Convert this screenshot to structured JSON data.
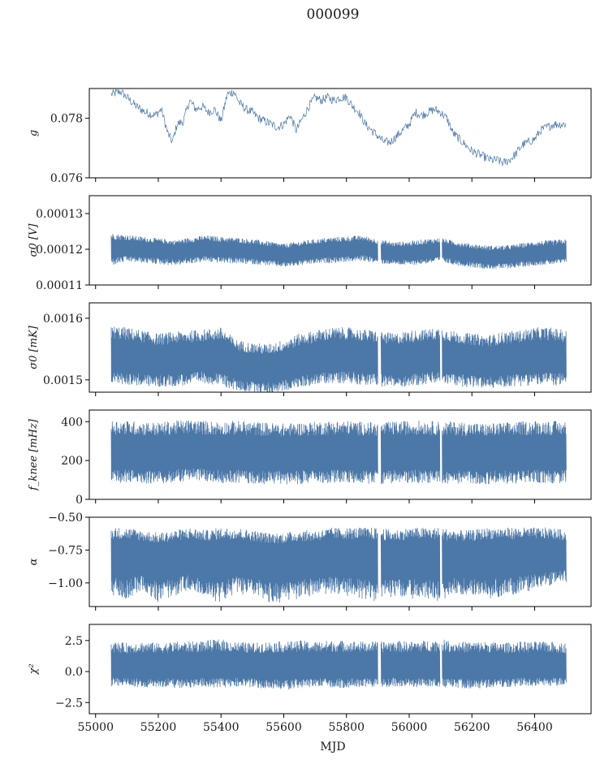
{
  "figure": {
    "title": "000099"
  },
  "chart_data": [
    {
      "type": "line",
      "ylabel": "g",
      "ylim": [
        0.076,
        0.079
      ],
      "yticks": [
        0.076,
        0.078
      ],
      "ytick_labels": [
        "0.076",
        "0.078"
      ],
      "color": "#4c78a8",
      "style": "thin",
      "series": [
        {
          "x": [
            55050,
            55080,
            55100,
            55130,
            55160,
            55190,
            55210,
            55230,
            55245,
            55260,
            55280,
            55300,
            55320,
            55340,
            55360,
            55380,
            55400,
            55420,
            55440,
            55460,
            55480,
            55500,
            55520,
            55540,
            55560,
            55580,
            55600,
            55620,
            55640,
            55660,
            55680,
            55700,
            55720,
            55740,
            55760,
            55780,
            55800,
            55820,
            55840,
            55860,
            55880,
            55900,
            55920,
            55940,
            55960,
            55980,
            56000,
            56020,
            56040,
            56060,
            56080,
            56100,
            56120,
            56140,
            56160,
            56180,
            56200,
            56220,
            56240,
            56260,
            56280,
            56300,
            56320,
            56340,
            56360,
            56380,
            56400,
            56420,
            56440,
            56460,
            56480,
            56500
          ],
          "y": [
            0.0788,
            0.0789,
            0.0787,
            0.0784,
            0.0782,
            0.0781,
            0.0783,
            0.0775,
            0.0772,
            0.0778,
            0.0779,
            0.0786,
            0.0783,
            0.0784,
            0.0782,
            0.0783,
            0.0779,
            0.0788,
            0.0789,
            0.0785,
            0.0783,
            0.0782,
            0.078,
            0.0779,
            0.0778,
            0.0777,
            0.0778,
            0.0781,
            0.0776,
            0.078,
            0.0784,
            0.0787,
            0.0786,
            0.0787,
            0.0786,
            0.0787,
            0.0787,
            0.0784,
            0.0782,
            0.0778,
            0.0776,
            0.0774,
            0.0772,
            0.0772,
            0.0774,
            0.0776,
            0.0778,
            0.0782,
            0.0781,
            0.0782,
            0.0783,
            0.0782,
            0.078,
            0.0775,
            0.0773,
            0.0771,
            0.0769,
            0.0768,
            0.0767,
            0.0766,
            0.0766,
            0.0765,
            0.0766,
            0.0768,
            0.0771,
            0.0772,
            0.0773,
            0.0776,
            0.0777,
            0.0778,
            0.0778,
            0.0778
          ]
        }
      ]
    },
    {
      "type": "line",
      "ylabel": "σ0 [V]",
      "ylim": [
        0.00011,
        0.000135
      ],
      "yticks": [
        0.00011,
        0.00012,
        0.00013
      ],
      "ytick_labels": [
        "0.00011",
        "0.00012",
        "0.00013"
      ],
      "color": "#4c78a8",
      "style": "dense",
      "series": [
        {
          "x": [
            55050,
            55100,
            55150,
            55200,
            55250,
            55300,
            55350,
            55400,
            55450,
            55500,
            55550,
            55600,
            55650,
            55700,
            55750,
            55800,
            55850,
            55900,
            55950,
            56000,
            56050,
            56100,
            56150,
            56200,
            56250,
            56300,
            56350,
            56400,
            56450,
            56500
          ],
          "mean": [
            0.0001205,
            0.0001205,
            0.00012,
            0.00012,
            0.0001195,
            0.00012,
            0.0001205,
            0.00012,
            0.00012,
            0.0001195,
            0.000119,
            0.0001185,
            0.000119,
            0.0001195,
            0.00012,
            0.00012,
            0.0001205,
            0.0001195,
            0.000119,
            0.000119,
            0.0001195,
            0.00012,
            0.000119,
            0.0001185,
            0.000118,
            0.000118,
            0.0001185,
            0.000119,
            0.000119,
            0.0001195
          ],
          "upper": [
            0.0001245,
            0.000124,
            0.0001235,
            0.000123,
            0.0001225,
            0.0001232,
            0.0001238,
            0.0001235,
            0.0001232,
            0.0001228,
            0.0001222,
            0.0001215,
            0.0001222,
            0.0001228,
            0.0001233,
            0.0001236,
            0.0001238,
            0.0001228,
            0.000122,
            0.0001222,
            0.0001228,
            0.0001232,
            0.0001222,
            0.0001215,
            0.000121,
            0.000121,
            0.0001215,
            0.0001222,
            0.0001225,
            0.0001228
          ],
          "lower": [
            0.0001155,
            0.0001165,
            0.0001162,
            0.0001158,
            0.0001155,
            0.000116,
            0.0001165,
            0.0001162,
            0.000116,
            0.0001158,
            0.0001155,
            0.000115,
            0.0001155,
            0.000116,
            0.0001162,
            0.0001165,
            0.0001168,
            0.000116,
            0.0001158,
            0.0001155,
            0.000116,
            0.0001165,
            0.0001155,
            0.000115,
            0.0001145,
            0.0001145,
            0.000115,
            0.0001155,
            0.0001158,
            0.000116
          ]
        }
      ]
    },
    {
      "type": "line",
      "ylabel": "σ0 [mK]",
      "ylim": [
        0.00148,
        0.001625
      ],
      "yticks": [
        0.0015,
        0.0016
      ],
      "ytick_labels": [
        "0.0015",
        "0.0016"
      ],
      "color": "#4c78a8",
      "style": "dense",
      "series": [
        {
          "x": [
            55050,
            55100,
            55150,
            55200,
            55250,
            55300,
            55350,
            55400,
            55450,
            55500,
            55550,
            55600,
            55650,
            55700,
            55750,
            55800,
            55850,
            55900,
            55950,
            56000,
            56050,
            56100,
            56150,
            56200,
            56250,
            56300,
            56350,
            56400,
            56450,
            56500
          ],
          "mean": [
            0.00154,
            0.001538,
            0.001535,
            0.001532,
            0.001534,
            0.001536,
            0.001538,
            0.001536,
            0.001525,
            0.00152,
            0.001518,
            0.001522,
            0.00153,
            0.001535,
            0.001538,
            0.00154,
            0.001538,
            0.001535,
            0.001532,
            0.001535,
            0.001538,
            0.00154,
            0.001535,
            0.001532,
            0.00153,
            0.001532,
            0.001535,
            0.001538,
            0.001538,
            0.001536
          ],
          "upper": [
            0.001588,
            0.001585,
            0.00158,
            0.001575,
            0.001578,
            0.00158,
            0.001582,
            0.001585,
            0.001565,
            0.00156,
            0.001558,
            0.001565,
            0.001575,
            0.00158,
            0.001585,
            0.001585,
            0.001582,
            0.00158,
            0.001575,
            0.00158,
            0.001582,
            0.001585,
            0.001578,
            0.001575,
            0.001572,
            0.001578,
            0.00158,
            0.001585,
            0.001585,
            0.00158
          ],
          "lower": [
            0.001495,
            0.001492,
            0.00149,
            0.001488,
            0.00149,
            0.001492,
            0.001495,
            0.00149,
            0.001482,
            0.00148,
            0.001478,
            0.001482,
            0.001488,
            0.001492,
            0.001495,
            0.001495,
            0.001492,
            0.00149,
            0.001488,
            0.00149,
            0.001492,
            0.001495,
            0.00149,
            0.001488,
            0.001486,
            0.001488,
            0.00149,
            0.001492,
            0.001492,
            0.00149
          ]
        }
      ]
    },
    {
      "type": "line",
      "ylabel": "f_knee [mHz]",
      "ylim": [
        0,
        460
      ],
      "yticks": [
        0,
        200,
        400
      ],
      "ytick_labels": [
        "0",
        "200",
        "400"
      ],
      "color": "#4c78a8",
      "style": "dense",
      "series": [
        {
          "x": [
            55050,
            55100,
            55150,
            55200,
            55250,
            55300,
            55350,
            55400,
            55450,
            55500,
            55550,
            55600,
            55650,
            55700,
            55750,
            55800,
            55850,
            55900,
            55950,
            56000,
            56050,
            56100,
            56150,
            56200,
            56250,
            56300,
            56350,
            56400,
            56450,
            56500
          ],
          "mean": [
            240,
            240,
            238,
            236,
            240,
            245,
            240,
            238,
            240,
            238,
            236,
            234,
            238,
            240,
            240,
            240,
            238,
            236,
            238,
            240,
            240,
            238,
            238,
            236,
            234,
            236,
            238,
            240,
            238,
            238
          ],
          "upper": [
            410,
            405,
            400,
            395,
            405,
            410,
            405,
            400,
            405,
            400,
            395,
            390,
            395,
            400,
            405,
            405,
            400,
            395,
            400,
            405,
            405,
            400,
            400,
            395,
            390,
            395,
            400,
            405,
            405,
            400
          ],
          "lower": [
            80,
            85,
            82,
            80,
            85,
            100,
            90,
            85,
            85,
            80,
            80,
            78,
            80,
            85,
            85,
            85,
            82,
            80,
            82,
            85,
            85,
            82,
            82,
            80,
            78,
            80,
            82,
            85,
            82,
            82
          ]
        }
      ]
    },
    {
      "type": "line",
      "ylabel": "α",
      "ylim": [
        -1.18,
        -0.5
      ],
      "yticks": [
        -1.0,
        -0.75,
        -0.5
      ],
      "ytick_labels": [
        "−1.00",
        "−0.75",
        "−0.50"
      ],
      "color": "#4c78a8",
      "style": "dense",
      "series": [
        {
          "x": [
            55050,
            55100,
            55150,
            55200,
            55250,
            55300,
            55350,
            55400,
            55450,
            55500,
            55550,
            55600,
            55650,
            55700,
            55750,
            55800,
            55850,
            55900,
            55950,
            56000,
            56050,
            56100,
            56150,
            56200,
            56250,
            56300,
            56350,
            56400,
            56450,
            56500
          ],
          "mean": [
            -0.78,
            -0.78,
            -0.79,
            -0.8,
            -0.79,
            -0.78,
            -0.79,
            -0.78,
            -0.78,
            -0.79,
            -0.8,
            -0.8,
            -0.79,
            -0.79,
            -0.78,
            -0.78,
            -0.78,
            -0.79,
            -0.79,
            -0.78,
            -0.78,
            -0.79,
            -0.79,
            -0.79,
            -0.78,
            -0.78,
            -0.78,
            -0.78,
            -0.78,
            -0.78
          ],
          "upper": [
            -0.58,
            -0.58,
            -0.6,
            -0.62,
            -0.6,
            -0.58,
            -0.6,
            -0.58,
            -0.58,
            -0.6,
            -0.62,
            -0.62,
            -0.6,
            -0.6,
            -0.58,
            -0.58,
            -0.58,
            -0.58,
            -0.6,
            -0.58,
            -0.58,
            -0.58,
            -0.6,
            -0.6,
            -0.58,
            -0.58,
            -0.58,
            -0.58,
            -0.58,
            -0.6
          ],
          "lower": [
            -1.1,
            -1.12,
            -1.05,
            -1.15,
            -1.1,
            -1.05,
            -1.12,
            -1.15,
            -1.08,
            -1.1,
            -1.15,
            -1.15,
            -1.12,
            -1.1,
            -1.08,
            -1.1,
            -1.12,
            -1.15,
            -1.1,
            -1.12,
            -1.12,
            -1.15,
            -1.08,
            -1.1,
            -1.12,
            -1.1,
            -1.08,
            -1.05,
            -1.02,
            -1.0
          ]
        }
      ]
    },
    {
      "type": "line",
      "ylabel": "χ²",
      "ylim": [
        -3.4,
        3.8
      ],
      "yticks": [
        -2.5,
        0.0,
        2.5
      ],
      "ytick_labels": [
        "−2.5",
        "0.0",
        "2.5"
      ],
      "color": "#4c78a8",
      "style": "dense",
      "series": [
        {
          "x": [
            55050,
            55100,
            55150,
            55200,
            55250,
            55300,
            55350,
            55400,
            55450,
            55500,
            55550,
            55600,
            55650,
            55700,
            55750,
            55800,
            55850,
            55900,
            55950,
            56000,
            56050,
            56100,
            56150,
            56200,
            56250,
            56300,
            56350,
            56400,
            56450,
            56500
          ],
          "mean": [
            0.4,
            0.4,
            0.4,
            0.4,
            0.4,
            0.4,
            0.4,
            0.4,
            0.4,
            0.4,
            0.4,
            0.4,
            0.4,
            0.4,
            0.4,
            0.4,
            0.4,
            0.4,
            0.4,
            0.4,
            0.4,
            0.4,
            0.4,
            0.4,
            0.4,
            0.4,
            0.4,
            0.4,
            0.4,
            0.4
          ],
          "upper": [
            2.4,
            2.3,
            2.4,
            2.3,
            2.4,
            2.4,
            2.5,
            2.6,
            2.4,
            2.3,
            2.4,
            2.4,
            2.5,
            2.4,
            2.5,
            2.5,
            2.4,
            2.4,
            2.5,
            2.4,
            2.5,
            2.6,
            2.4,
            2.4,
            2.4,
            2.3,
            2.4,
            2.4,
            2.4,
            2.3
          ],
          "lower": [
            -1.2,
            -1.1,
            -1.3,
            -1.2,
            -1.3,
            -1.3,
            -1.2,
            -1.3,
            -1.2,
            -1.3,
            -1.4,
            -1.5,
            -1.3,
            -1.2,
            -1.3,
            -1.3,
            -1.2,
            -1.3,
            -1.2,
            -1.3,
            -1.2,
            -1.3,
            -1.3,
            -1.4,
            -1.3,
            -1.3,
            -1.2,
            -1.2,
            -1.2,
            -1.1
          ]
        }
      ]
    }
  ],
  "xaxis": {
    "label": "MJD",
    "xlim": [
      54980,
      56580
    ],
    "ticks": [
      55000,
      55200,
      55400,
      55600,
      55800,
      56000,
      56200,
      56400
    ],
    "tick_labels": [
      "55000",
      "55200",
      "55400",
      "55600",
      "55800",
      "56000",
      "56200",
      "56400"
    ]
  }
}
